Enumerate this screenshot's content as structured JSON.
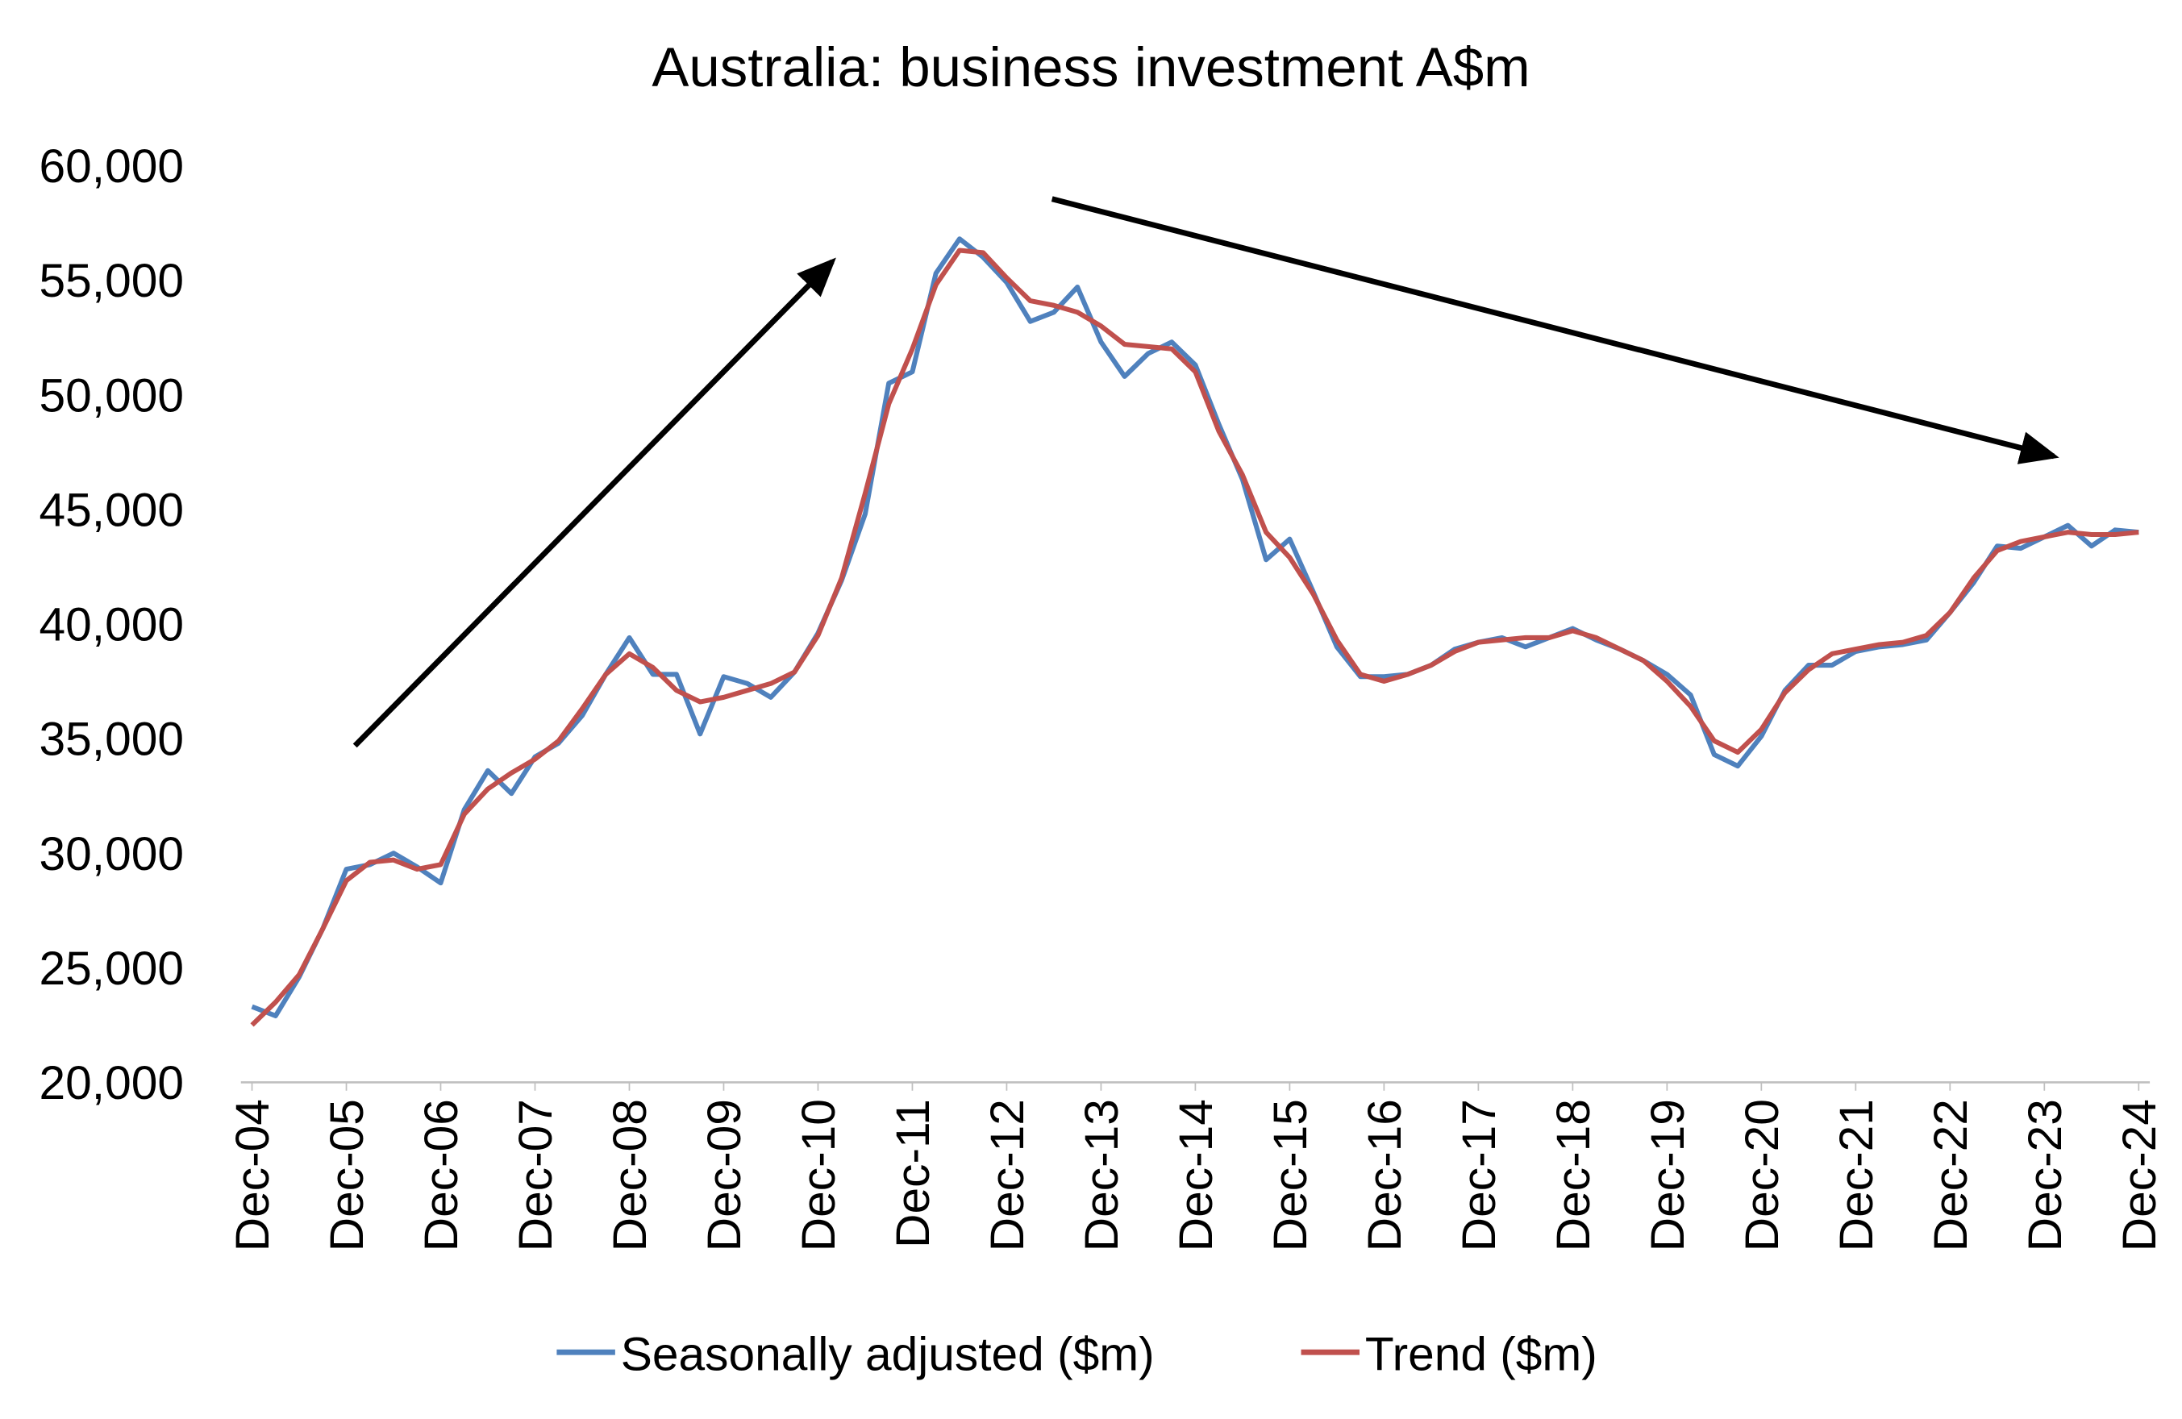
{
  "chart_data": {
    "type": "line",
    "title": "Australia: business investment A$m",
    "categories": [
      "Dec-04",
      null,
      null,
      null,
      "Dec-05",
      null,
      null,
      null,
      "Dec-06",
      null,
      null,
      null,
      "Dec-07",
      null,
      null,
      null,
      "Dec-08",
      null,
      null,
      null,
      "Dec-09",
      null,
      null,
      null,
      "Dec-10",
      null,
      null,
      null,
      "Dec-11",
      null,
      null,
      null,
      "Dec-12",
      null,
      null,
      null,
      "Dec-13",
      null,
      null,
      null,
      "Dec-14",
      null,
      null,
      null,
      "Dec-15",
      null,
      null,
      null,
      "Dec-16",
      null,
      null,
      null,
      "Dec-17",
      null,
      null,
      null,
      "Dec-18",
      null,
      null,
      null,
      "Dec-19",
      null,
      null,
      null,
      "Dec-20",
      null,
      null,
      null,
      "Dec-21",
      null,
      null,
      null,
      "Dec-22",
      null,
      null,
      null,
      "Dec-23",
      null,
      null,
      null,
      "Dec-24"
    ],
    "series": [
      {
        "name": "Seasonally adjusted ($m)",
        "color": "#4f81bd",
        "values": [
          23300,
          22900,
          24600,
          26700,
          29300,
          29500,
          30000,
          29400,
          28700,
          31900,
          33600,
          32600,
          34200,
          34800,
          36000,
          37800,
          39400,
          37800,
          37800,
          35200,
          37700,
          37400,
          36800,
          37900,
          39600,
          41900,
          44800,
          50500,
          51000,
          55300,
          56800,
          56000,
          54900,
          53200,
          53600,
          54700,
          52300,
          50800,
          51800,
          52300,
          51300,
          48700,
          46300,
          42800,
          43700,
          41400,
          39000,
          37700,
          37700,
          37800,
          38200,
          38900,
          39200,
          39400,
          39000,
          39400,
          39800,
          39300,
          38900,
          38400,
          37800,
          36900,
          34300,
          33800,
          35100,
          37100,
          38200,
          38200,
          38800,
          39000,
          39100,
          39300,
          40500,
          41800,
          43400,
          43300,
          43800,
          44300,
          43400,
          44100,
          44000
        ]
      },
      {
        "name": "Trend ($m)",
        "color": "#c0504d",
        "values": [
          22500,
          23500,
          24700,
          26700,
          28800,
          29600,
          29700,
          29300,
          29500,
          31700,
          32800,
          33500,
          34100,
          34900,
          36300,
          37800,
          38700,
          38100,
          37100,
          36600,
          36800,
          37100,
          37400,
          37900,
          39500,
          42000,
          45700,
          49600,
          52000,
          54800,
          56300,
          56200,
          55100,
          54100,
          53900,
          53600,
          53000,
          52200,
          52100,
          52000,
          51000,
          48400,
          46500,
          44000,
          42900,
          41300,
          39300,
          37800,
          37500,
          37800,
          38200,
          38800,
          39200,
          39300,
          39400,
          39400,
          39700,
          39400,
          38900,
          38400,
          37500,
          36400,
          34900,
          34400,
          35400,
          37000,
          38000,
          38700,
          38900,
          39100,
          39200,
          39500,
          40500,
          42000,
          43200,
          43600,
          43800,
          44000,
          43900,
          43900,
          44000
        ]
      }
    ],
    "ylim": [
      20000,
      60000
    ],
    "yticks": [
      {
        "value": 20000,
        "label": "20,000"
      },
      {
        "value": 25000,
        "label": "25,000"
      },
      {
        "value": 30000,
        "label": "30,000"
      },
      {
        "value": 35000,
        "label": "35,000"
      },
      {
        "value": 40000,
        "label": "40,000"
      },
      {
        "value": 45000,
        "label": "45,000"
      },
      {
        "value": 50000,
        "label": "50,000"
      },
      {
        "value": 55000,
        "label": "55,000"
      },
      {
        "value": 60000,
        "label": "60,000"
      }
    ],
    "grid": false,
    "legend": "bottom"
  }
}
